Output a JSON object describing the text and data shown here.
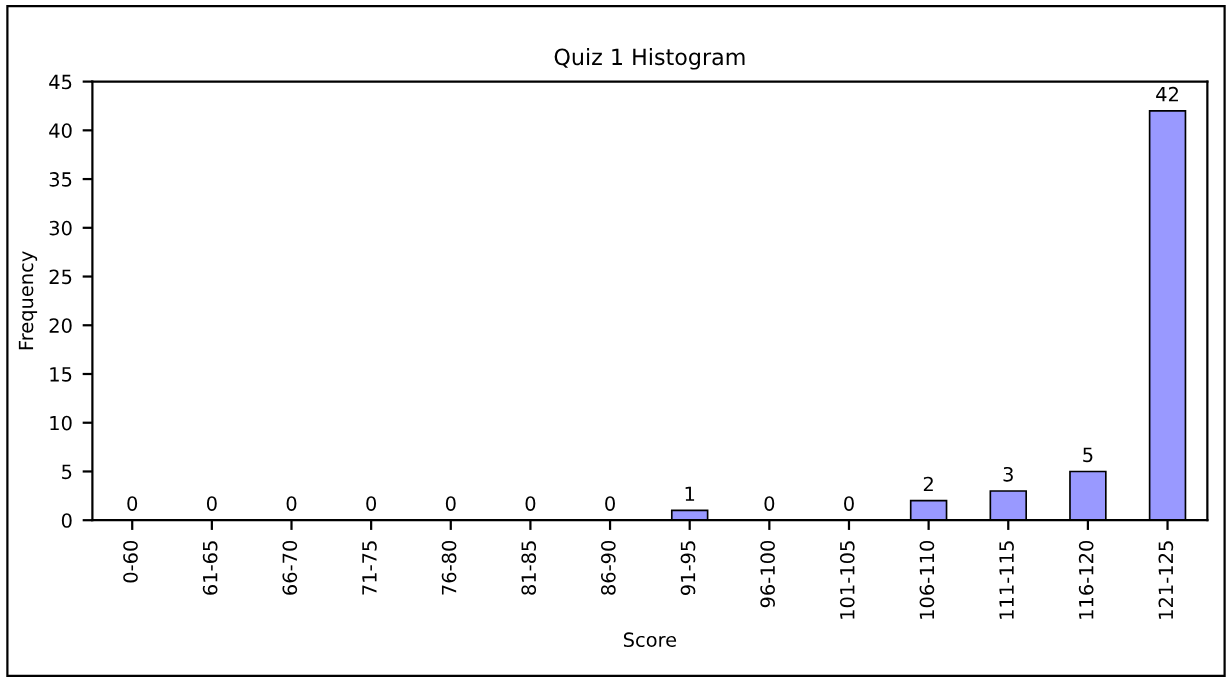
{
  "chart_data": {
    "type": "bar",
    "title": "Quiz 1 Histogram",
    "xlabel": "Score",
    "ylabel": "Frequency",
    "categories": [
      "0-60",
      "61-65",
      "66-70",
      "71-75",
      "76-80",
      "81-85",
      "86-90",
      "91-95",
      "96-100",
      "101-105",
      "106-110",
      "111-115",
      "116-120",
      "121-125"
    ],
    "values": [
      0,
      0,
      0,
      0,
      0,
      0,
      0,
      1,
      0,
      0,
      2,
      3,
      5,
      42
    ],
    "color": "#9999ff",
    "ylim": [
      0,
      45
    ],
    "yticks": [
      0,
      5,
      10,
      15,
      20,
      25,
      30,
      35,
      40,
      45
    ],
    "data_labels": true,
    "grid": false,
    "legend": false
  }
}
